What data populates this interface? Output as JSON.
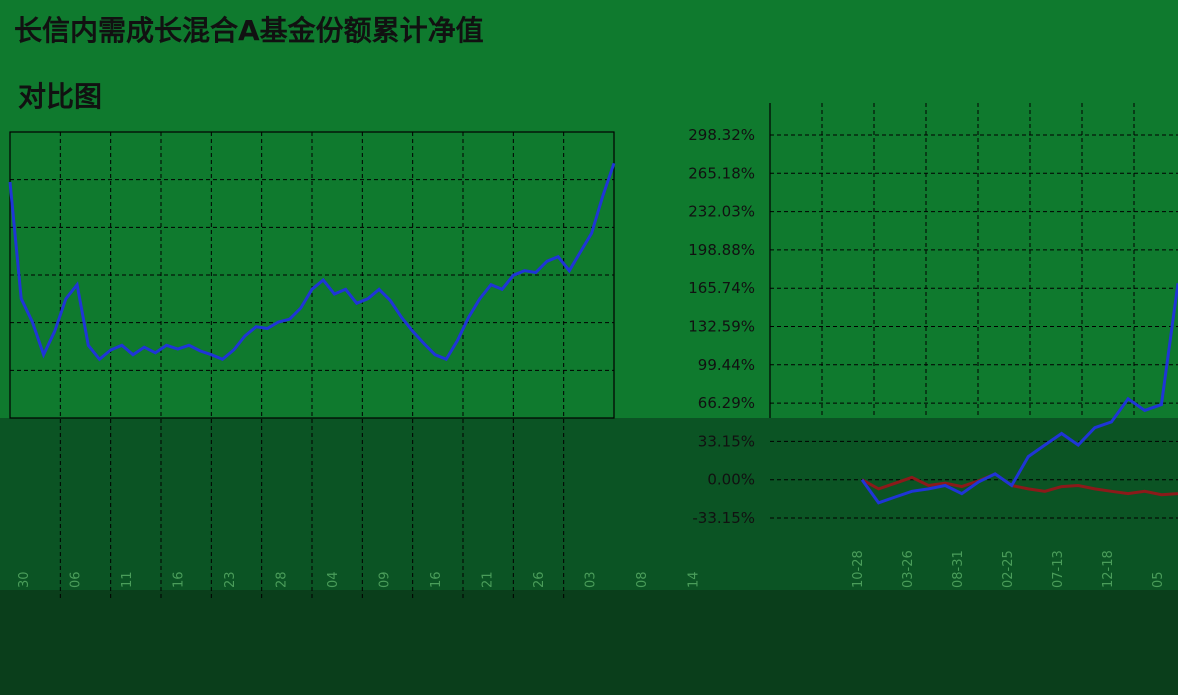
{
  "title_line1": "长信内需成长混合A基金份额累计净值",
  "title_line2": "对比图",
  "colors": {
    "background": "#0f7a2e",
    "lower_band": "#0b5424",
    "bottom_band": "#0a3e1b",
    "grid": "#000000",
    "fund_line": "#1f35d6",
    "compare_line": "#8b1a1a",
    "tick_text": "#111111",
    "xtick_text": "#4a9d5a"
  },
  "chart_data": [
    {
      "type": "line",
      "title": "长信内需成长混合A基金份额累计净值",
      "subtitle": "对比图",
      "x_tick_labels": [
        "30",
        "06",
        "11",
        "16",
        "23",
        "28",
        "04",
        "09",
        "16",
        "21",
        "26",
        "03",
        "08",
        "14"
      ],
      "series": [
        {
          "color": "#1f35d6",
          "values": [
            255,
            130,
            105,
            70,
            95,
            130,
            145,
            80,
            65,
            75,
            80,
            70,
            78,
            72,
            80,
            76,
            80,
            74,
            70,
            65,
            75,
            90,
            100,
            98,
            105,
            108,
            120,
            140,
            150,
            135,
            140,
            125,
            130,
            140,
            128,
            110,
            95,
            82,
            70,
            65,
            85,
            110,
            130,
            145,
            140,
            155,
            160,
            158,
            170,
            175,
            160,
            180,
            200,
            240,
            275
          ]
        }
      ]
    },
    {
      "type": "line",
      "y_tick_labels": [
        "298.32%",
        "265.18%",
        "232.03%",
        "198.88%",
        "165.74%",
        "132.59%",
        "99.44%",
        "66.29%",
        "33.15%",
        "0.00%",
        "-33.15%"
      ],
      "ylim": [
        -33.15,
        298.32
      ],
      "x_tick_labels": [
        "10-28",
        "03-26",
        "08-31",
        "02-25",
        "07-13",
        "12-18",
        "05"
      ],
      "series": [
        {
          "color": "#1f35d6",
          "values": [
            0,
            -20,
            -15,
            -10,
            -8,
            -5,
            -12,
            -2,
            5,
            -5,
            20,
            30,
            40,
            30,
            45,
            50,
            70,
            60,
            65,
            170
          ]
        },
        {
          "color": "#8b1a1a",
          "values": [
            0,
            -8,
            -3,
            2,
            -5,
            -3,
            -6,
            -1,
            5,
            -5,
            -8,
            -10,
            -6,
            -5,
            -8,
            -10,
            -12,
            -10,
            -13,
            -12
          ]
        }
      ]
    }
  ]
}
